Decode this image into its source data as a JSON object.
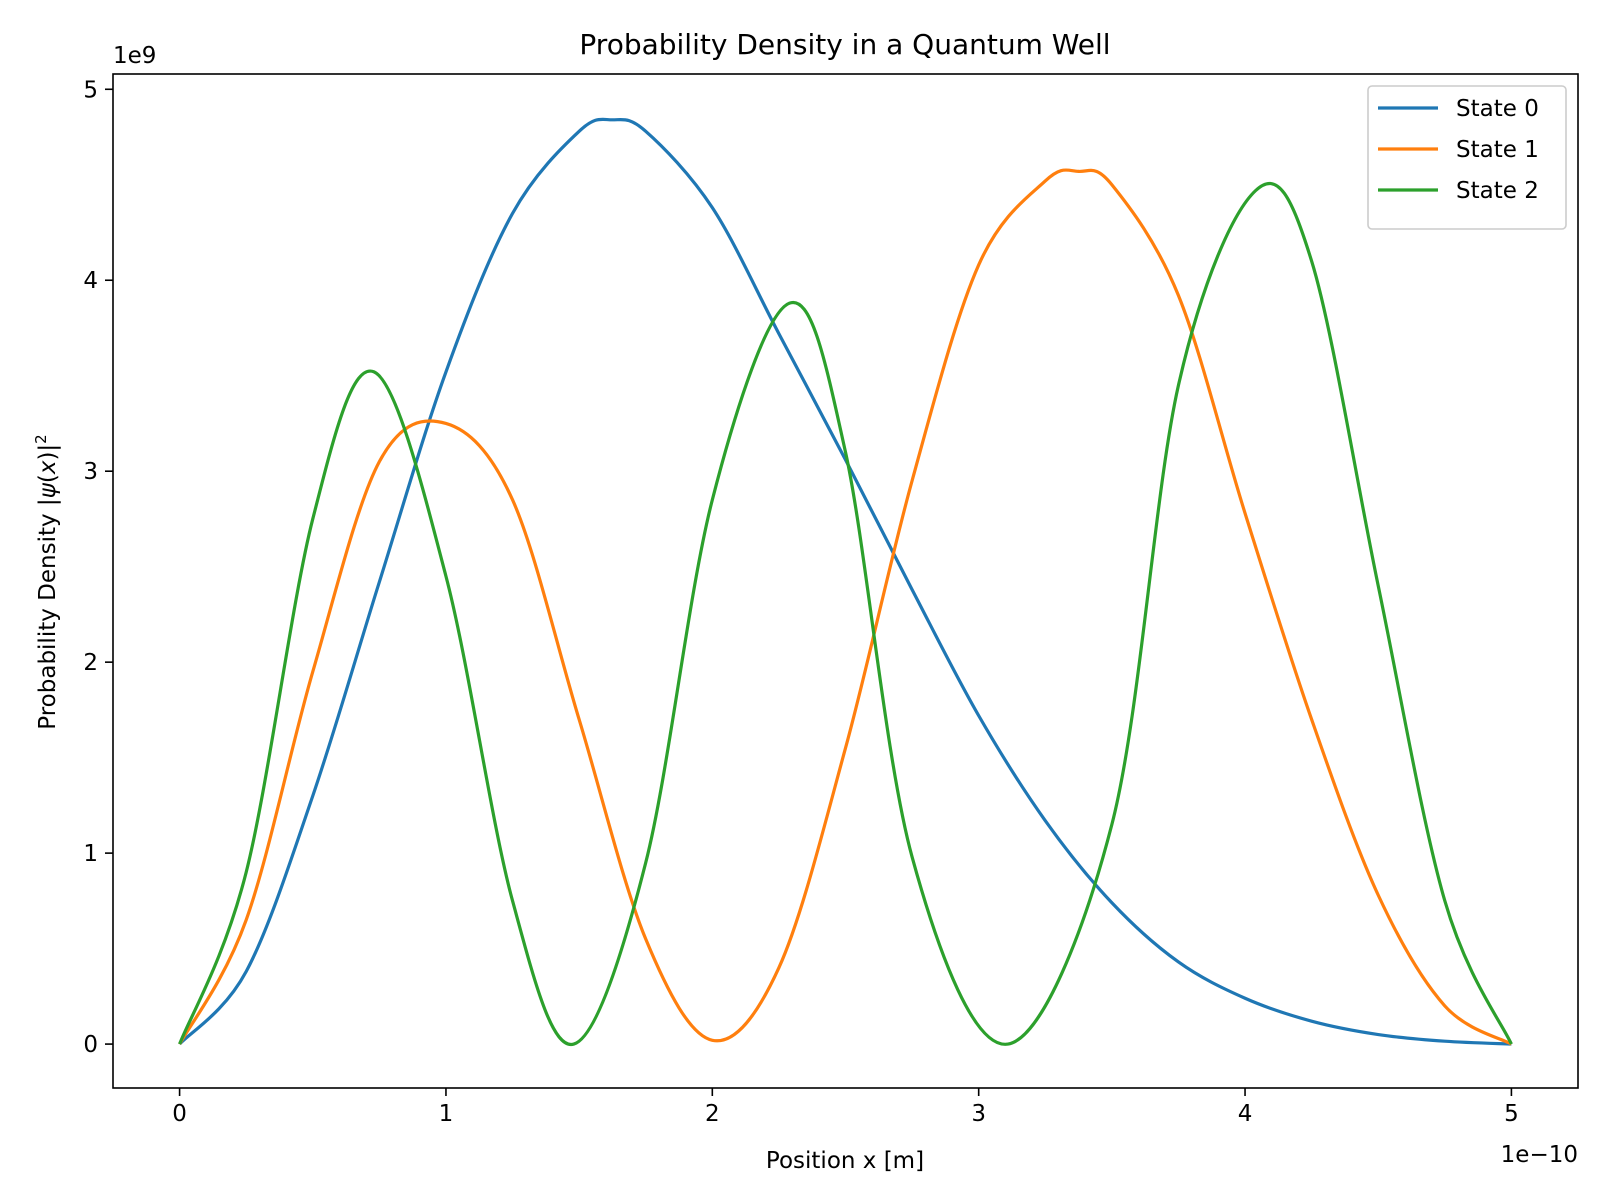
{
  "chart_data": {
    "type": "line",
    "title": "Probability Density in a Quantum Well",
    "xlabel": "Position x [m]",
    "ylabel_main": "Probability Density |",
    "ylabel_psi": "ψ",
    "ylabel_paren": "(",
    "ylabel_x": "x",
    "ylabel_close": ")|",
    "ylabel_sup": "2",
    "x_offset_label": "1e−10",
    "y_offset_label": "1e9",
    "xlim": [
      -0.25,
      5.25
    ],
    "ylim": [
      -0.23,
      5.08
    ],
    "xticks": [
      0,
      1,
      2,
      3,
      4,
      5
    ],
    "xtick_labels": [
      "0",
      "1",
      "2",
      "3",
      "4",
      "5"
    ],
    "yticks": [
      0,
      1,
      2,
      3,
      4,
      5
    ],
    "ytick_labels": [
      "0",
      "1",
      "2",
      "3",
      "4",
      "5"
    ],
    "grid": false,
    "legend_position": "top-right",
    "series": [
      {
        "name": "State 0",
        "color": "#1f77b4",
        "x": [
          0,
          0.25,
          0.5,
          0.75,
          1.0,
          1.25,
          1.5,
          1.625,
          1.75,
          2.0,
          2.25,
          2.5,
          2.75,
          3.0,
          3.25,
          3.5,
          3.75,
          4.0,
          4.25,
          4.5,
          4.75,
          5.0
        ],
        "y": [
          0,
          0.38,
          1.3,
          2.42,
          3.52,
          4.35,
          4.78,
          4.84,
          4.78,
          4.38,
          3.72,
          3.06,
          2.38,
          1.72,
          1.17,
          0.74,
          0.43,
          0.24,
          0.12,
          0.05,
          0.015,
          0
        ]
      },
      {
        "name": "State 1",
        "color": "#ff7f0e",
        "x": [
          0,
          0.25,
          0.5,
          0.75,
          1.0,
          1.25,
          1.5,
          1.75,
          2.0,
          2.25,
          2.5,
          2.75,
          3.0,
          3.25,
          3.375,
          3.5,
          3.75,
          4.0,
          4.25,
          4.5,
          4.75,
          5.0
        ],
        "y": [
          0,
          0.65,
          1.95,
          3.05,
          3.25,
          2.85,
          1.7,
          0.55,
          0.02,
          0.4,
          1.55,
          2.95,
          4.08,
          4.52,
          4.57,
          4.5,
          3.92,
          2.78,
          1.7,
          0.78,
          0.2,
          0
        ],
        "note_x_units": "×1e-10 m"
      },
      {
        "name": "State 2",
        "color": "#2ca02c",
        "x": [
          0,
          0.25,
          0.5,
          0.73,
          1.0,
          1.25,
          1.48,
          1.75,
          2.0,
          2.29,
          2.5,
          2.75,
          3.11,
          3.5,
          3.75,
          4.04,
          4.25,
          4.5,
          4.75,
          5.0
        ],
        "y": [
          0,
          0.9,
          2.75,
          3.52,
          2.45,
          0.75,
          0.0,
          0.95,
          2.85,
          3.88,
          3.1,
          0.98,
          0.0,
          1.15,
          3.45,
          4.47,
          4.1,
          2.4,
          0.75,
          0
        ]
      }
    ]
  }
}
